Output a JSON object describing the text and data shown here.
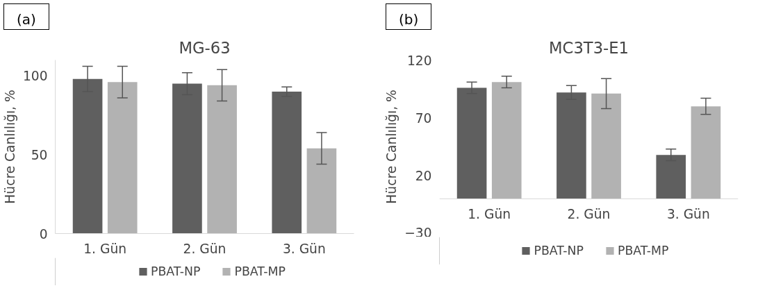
{
  "chart_data": [
    {
      "type": "bar",
      "title": "MG-63",
      "annotations": [
        "(a)"
      ],
      "ylabel": "Hücre Canlılığı, %",
      "categories": [
        "1. Gün",
        "2. Gün",
        "3. Gün"
      ],
      "ylim": [
        0,
        110
      ],
      "yticks": [
        0,
        50,
        100
      ],
      "grid": false,
      "legend": "bottom",
      "series": [
        {
          "name": "PBAT-NP",
          "color": "#5f5f5f",
          "values": [
            98,
            95,
            90
          ],
          "errors": [
            8,
            7,
            3
          ]
        },
        {
          "name": "PBAT-MP",
          "color": "#b2b2b2",
          "values": [
            96,
            94,
            54
          ],
          "errors": [
            10,
            10,
            10
          ]
        }
      ]
    },
    {
      "type": "bar",
      "title": "MC3T3-E1",
      "annotations": [
        "(b)"
      ],
      "ylabel": "Hücre Canlılığı, %",
      "categories": [
        "1. Gün",
        "2. Gün",
        "3. Gün"
      ],
      "ylim": [
        -30,
        120
      ],
      "yticks": [
        -30,
        20,
        70,
        120
      ],
      "grid": false,
      "legend": "bottom",
      "series": [
        {
          "name": "PBAT-NP",
          "color": "#5f5f5f",
          "values": [
            96,
            92,
            38
          ],
          "errors": [
            5,
            6,
            5
          ]
        },
        {
          "name": "PBAT-MP",
          "color": "#b2b2b2",
          "values": [
            101,
            91,
            80
          ],
          "errors": [
            5,
            13,
            7
          ]
        }
      ]
    }
  ]
}
